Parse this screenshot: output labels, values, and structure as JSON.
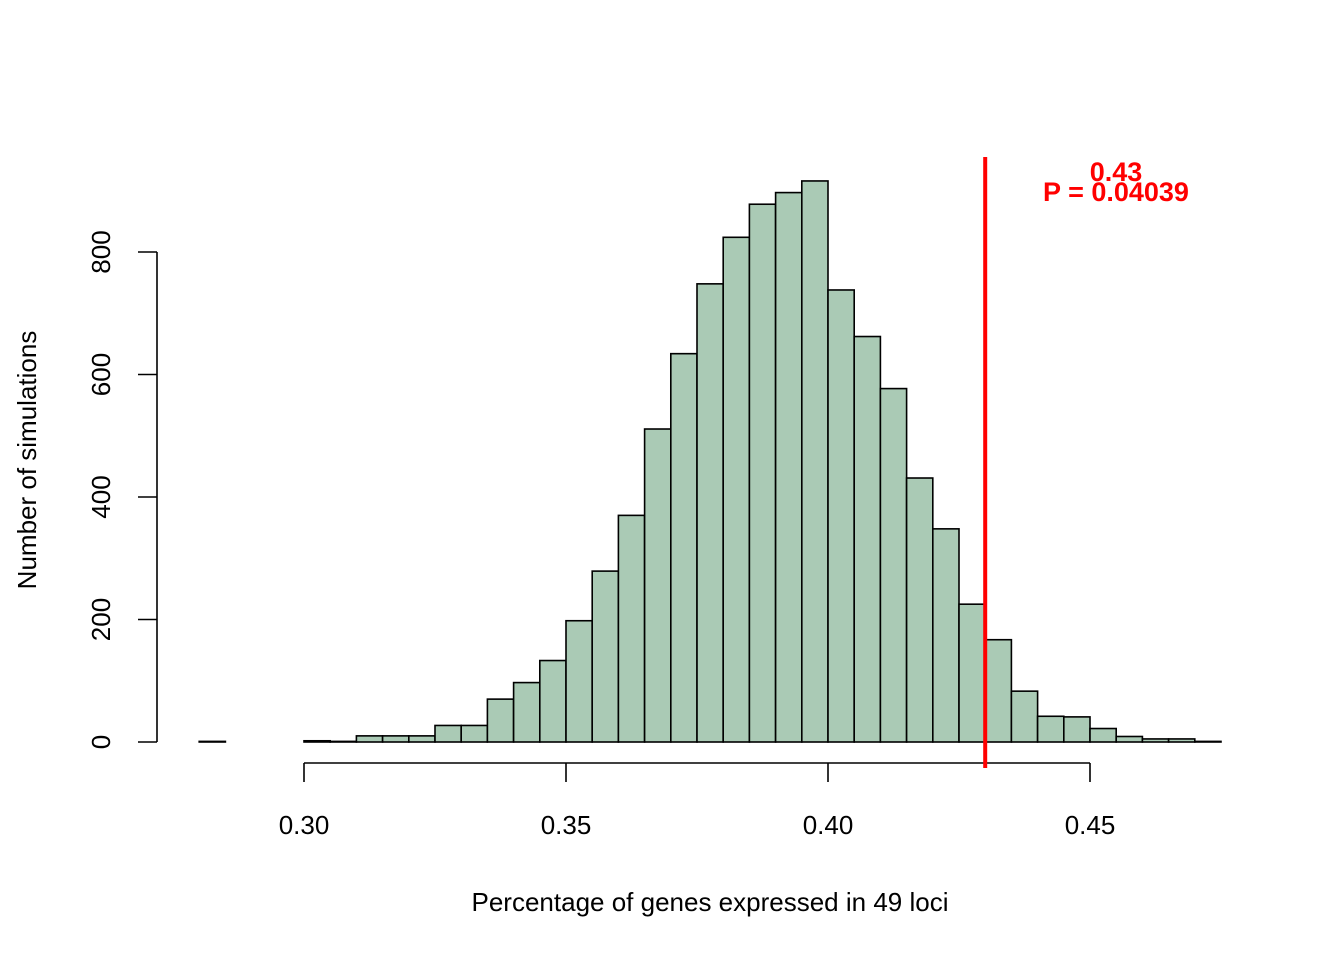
{
  "chart_data": {
    "type": "bar",
    "xlabel": "Percentage of genes expressed in 49 loci",
    "ylabel": "Number of simulations",
    "xlim": [
      0.28,
      0.475
    ],
    "ylim": [
      0,
      900
    ],
    "x_ticks": [
      "0.30",
      "0.35",
      "0.40",
      "0.45"
    ],
    "x_tick_values": [
      0.3,
      0.35,
      0.4,
      0.45
    ],
    "y_ticks": [
      "0",
      "200",
      "400",
      "600",
      "800"
    ],
    "y_tick_values": [
      0,
      200,
      400,
      600,
      800
    ],
    "bin_width": 0.005,
    "bins": [
      {
        "start": 0.28,
        "count": 1
      },
      {
        "start": 0.285,
        "count": 0
      },
      {
        "start": 0.29,
        "count": 0
      },
      {
        "start": 0.295,
        "count": 0
      },
      {
        "start": 0.3,
        "count": 2
      },
      {
        "start": 0.305,
        "count": 1
      },
      {
        "start": 0.31,
        "count": 10
      },
      {
        "start": 0.315,
        "count": 10
      },
      {
        "start": 0.32,
        "count": 10
      },
      {
        "start": 0.325,
        "count": 27
      },
      {
        "start": 0.33,
        "count": 27
      },
      {
        "start": 0.335,
        "count": 70
      },
      {
        "start": 0.34,
        "count": 97
      },
      {
        "start": 0.345,
        "count": 133
      },
      {
        "start": 0.35,
        "count": 198
      },
      {
        "start": 0.355,
        "count": 279
      },
      {
        "start": 0.36,
        "count": 370
      },
      {
        "start": 0.365,
        "count": 511
      },
      {
        "start": 0.37,
        "count": 634
      },
      {
        "start": 0.375,
        "count": 748
      },
      {
        "start": 0.38,
        "count": 824
      },
      {
        "start": 0.385,
        "count": 878
      },
      {
        "start": 0.39,
        "count": 897
      },
      {
        "start": 0.395,
        "count": 916
      },
      {
        "start": 0.4,
        "count": 738
      },
      {
        "start": 0.405,
        "count": 662
      },
      {
        "start": 0.41,
        "count": 577
      },
      {
        "start": 0.415,
        "count": 431
      },
      {
        "start": 0.42,
        "count": 348
      },
      {
        "start": 0.425,
        "count": 225
      },
      {
        "start": 0.43,
        "count": 167
      },
      {
        "start": 0.435,
        "count": 83
      },
      {
        "start": 0.44,
        "count": 42
      },
      {
        "start": 0.445,
        "count": 41
      },
      {
        "start": 0.45,
        "count": 22
      },
      {
        "start": 0.455,
        "count": 9
      },
      {
        "start": 0.46,
        "count": 5
      },
      {
        "start": 0.465,
        "count": 5
      },
      {
        "start": 0.47,
        "count": 1
      }
    ],
    "bar_fill": "#aacab5",
    "bar_stroke": "#000000",
    "threshold": {
      "x": 0.43,
      "color": "#ff0000",
      "label_value": "0.43",
      "label_p": "P = 0.04039"
    },
    "grid": false,
    "legend": "none"
  }
}
